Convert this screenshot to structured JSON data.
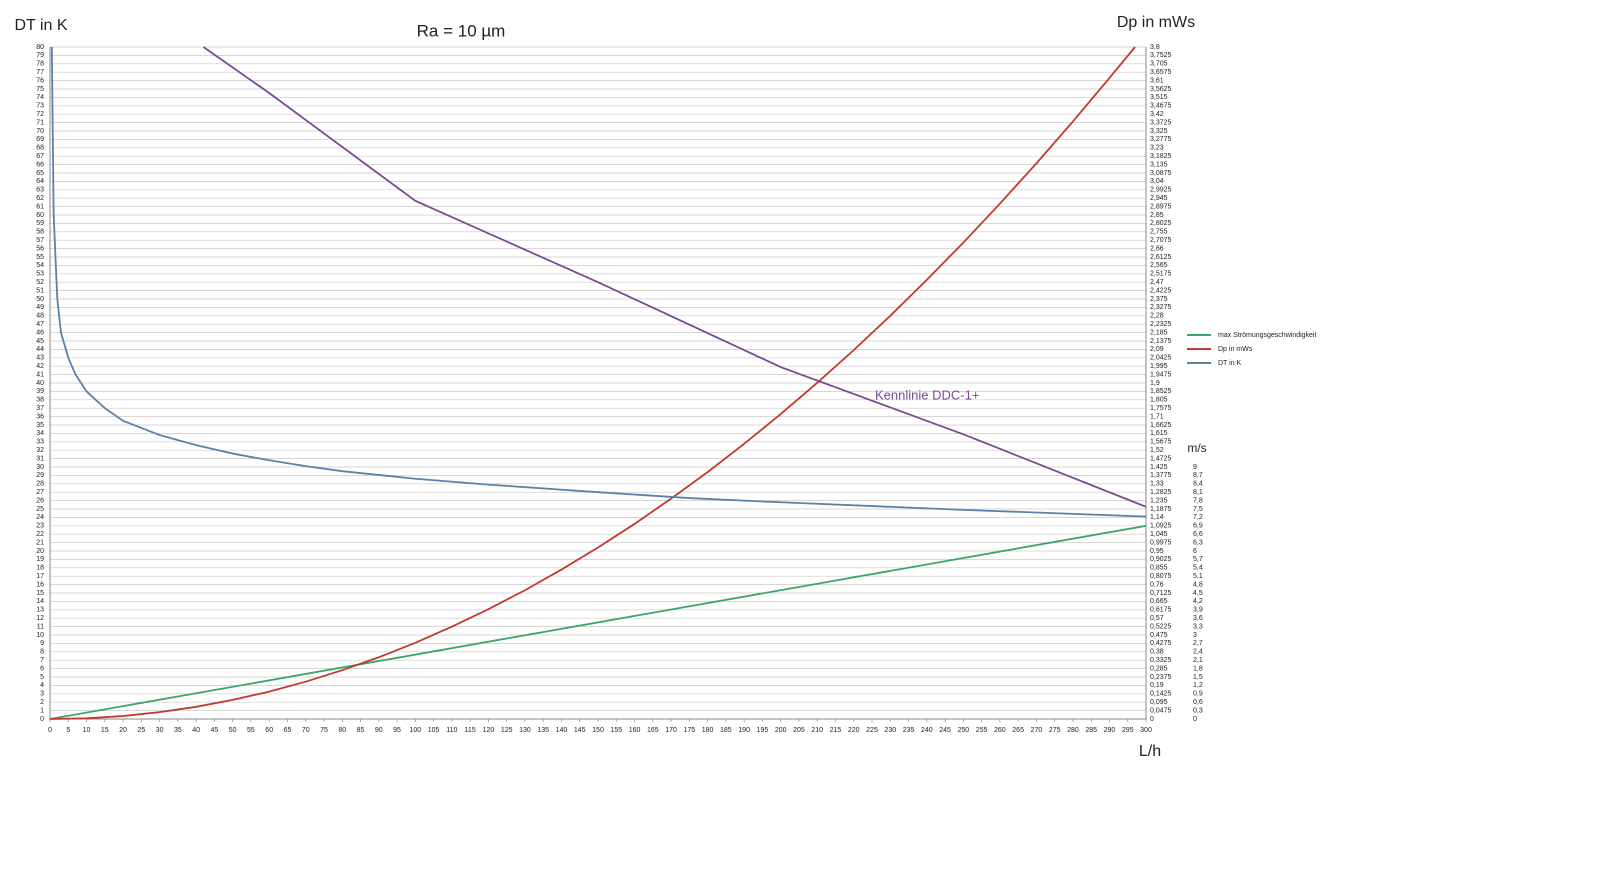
{
  "chart_data": {
    "type": "line",
    "title": "Ra = 10 µm",
    "y_label": "DT in K",
    "y2_label": "Dp in mWs",
    "y3_label": "m/s",
    "x_label": "L/h",
    "xlim": [
      0,
      300
    ],
    "ylim": [
      0,
      80
    ],
    "y2lim": [
      0,
      3.8
    ],
    "y3lim": [
      0,
      24
    ],
    "grid": true,
    "legend": "right",
    "xticks": [
      0,
      5,
      10,
      15,
      20,
      25,
      30,
      35,
      40,
      45,
      50,
      55,
      60,
      65,
      70,
      75,
      80,
      85,
      90,
      95,
      100,
      105,
      110,
      115,
      120,
      125,
      130,
      135,
      140,
      145,
      150,
      155,
      160,
      165,
      170,
      175,
      180,
      185,
      190,
      195,
      200,
      205,
      210,
      215,
      220,
      225,
      230,
      235,
      240,
      245,
      250,
      255,
      260,
      265,
      270,
      275,
      280,
      285,
      290,
      295,
      300
    ],
    "yticks": [
      0,
      1,
      2,
      3,
      4,
      5,
      6,
      7,
      8,
      9,
      10,
      11,
      12,
      13,
      14,
      15,
      16,
      17,
      18,
      19,
      20,
      21,
      22,
      23,
      24,
      25,
      26,
      27,
      28,
      29,
      30,
      31,
      32,
      33,
      34,
      35,
      36,
      37,
      38,
      39,
      40,
      41,
      42,
      43,
      44,
      45,
      46,
      47,
      48,
      49,
      50,
      51,
      52,
      53,
      54,
      55,
      56,
      57,
      58,
      59,
      60,
      61,
      62,
      63,
      64,
      65,
      66,
      67,
      68,
      69,
      70,
      71,
      72,
      73,
      74,
      75,
      76,
      77,
      78,
      79,
      80
    ],
    "y2ticks": [
      0,
      {
        "value": 0.0475,
        "label": "0,0475"
      },
      {
        "value": 0.095,
        "label": "0,095"
      },
      {
        "value": 0.1425,
        "label": "0,1425"
      },
      {
        "value": 0.19,
        "label": "0,19"
      },
      {
        "value": 0.2375,
        "label": "0,2375"
      },
      {
        "value": 0.285,
        "label": "0,285"
      },
      {
        "value": 0.3325,
        "label": "0,3325"
      },
      {
        "value": 0.38,
        "label": "0,38"
      },
      {
        "value": 0.4275,
        "label": "0,4275"
      },
      {
        "value": 0.475,
        "label": "0,475"
      },
      {
        "value": 0.5225,
        "label": "0,5225"
      },
      {
        "value": 0.57,
        "label": "0,57"
      },
      {
        "value": 0.6175,
        "label": "0,6175"
      },
      {
        "value": 0.665,
        "label": "0,665"
      },
      {
        "value": 0.7125,
        "label": "0,7125"
      },
      {
        "value": 0.76,
        "label": "0,76"
      },
      {
        "value": 0.8075,
        "label": "0,8075"
      },
      {
        "value": 0.855,
        "label": "0,855"
      },
      {
        "value": 0.9025,
        "label": "0,9025"
      },
      {
        "value": 0.95,
        "label": "0,95"
      },
      {
        "value": 0.9975,
        "label": "0,9975"
      },
      {
        "value": 1.045,
        "label": "1,045"
      },
      {
        "value": 1.0925,
        "label": "1,0925"
      },
      {
        "value": 1.14,
        "label": "1,14"
      },
      {
        "value": 1.1875,
        "label": "1,1875"
      },
      {
        "value": 1.235,
        "label": "1,235"
      },
      {
        "value": 1.2825,
        "label": "1,2825"
      },
      {
        "value": 1.33,
        "label": "1,33"
      },
      {
        "value": 1.3775,
        "label": "1,3775"
      },
      {
        "value": 1.425,
        "label": "1,425"
      },
      {
        "value": 1.4725,
        "label": "1,4725"
      },
      {
        "value": 1.52,
        "label": "1,52"
      },
      {
        "value": 1.5675,
        "label": "1,5675"
      },
      {
        "value": 1.615,
        "label": "1,615"
      },
      {
        "value": 1.6625,
        "label": "1,6625"
      },
      {
        "value": 1.71,
        "label": "1,71"
      },
      {
        "value": 1.7575,
        "label": "1,7575"
      },
      {
        "value": 1.805,
        "label": "1,805"
      },
      {
        "value": 1.8525,
        "label": "1,8525"
      },
      {
        "value": 1.9,
        "label": "1,9"
      },
      {
        "value": 1.9475,
        "label": "1,9475"
      },
      {
        "value": 1.995,
        "label": "1,995"
      },
      {
        "value": 2.0425,
        "label": "2,0425"
      },
      {
        "value": 2.09,
        "label": "2,09"
      },
      {
        "value": 2.1375,
        "label": "2,1375"
      },
      {
        "value": 2.185,
        "label": "2,185"
      },
      {
        "value": 2.2325,
        "label": "2,2325"
      },
      {
        "value": 2.28,
        "label": "2,28"
      },
      {
        "value": 2.3275,
        "label": "2,3275"
      },
      {
        "value": 2.375,
        "label": "2,375"
      },
      {
        "value": 2.4225,
        "label": "2,4225"
      },
      {
        "value": 2.47,
        "label": "2,47"
      },
      {
        "value": 2.5175,
        "label": "2,5175"
      },
      {
        "value": 2.565,
        "label": "2,565"
      },
      {
        "value": 2.6125,
        "label": "2,6125"
      },
      {
        "value": 2.66,
        "label": "2,66"
      },
      {
        "value": 2.7075,
        "label": "2,7075"
      },
      {
        "value": 2.755,
        "label": "2,755"
      },
      {
        "value": 2.8025,
        "label": "2,8025"
      },
      {
        "value": 2.85,
        "label": "2,85"
      },
      {
        "value": 2.8975,
        "label": "2,8975"
      },
      {
        "value": 2.945,
        "label": "2,945"
      },
      {
        "value": 2.9925,
        "label": "2,9925"
      },
      {
        "value": 3.04,
        "label": "3,04"
      },
      {
        "value": 3.0875,
        "label": "3,0875"
      },
      {
        "value": 3.135,
        "label": "3,135"
      },
      {
        "value": 3.1825,
        "label": "3,1825"
      },
      {
        "value": 3.23,
        "label": "3,23"
      },
      {
        "value": 3.2775,
        "label": "3,2775"
      },
      {
        "value": 3.325,
        "label": "3,325"
      },
      {
        "value": 3.3725,
        "label": "3,3725"
      },
      {
        "value": 3.42,
        "label": "3,42"
      },
      {
        "value": 3.4675,
        "label": "3,4675"
      },
      {
        "value": 3.515,
        "label": "3,515"
      },
      {
        "value": 3.5625,
        "label": "3,5625"
      },
      {
        "value": 3.61,
        "label": "3,61"
      },
      {
        "value": 3.6575,
        "label": "3,6575"
      },
      {
        "value": 3.705,
        "label": "3,705"
      },
      {
        "value": 3.7525,
        "label": "3,7525"
      },
      {
        "value": 3.8,
        "label": "3,8"
      }
    ],
    "y3ticks": [
      0,
      {
        "value": 0.3,
        "label": "0,3"
      },
      {
        "value": 0.6,
        "label": "0,6"
      },
      {
        "value": 0.9,
        "label": "0,9"
      },
      {
        "value": 1.2,
        "label": "1,2"
      },
      {
        "value": 1.5,
        "label": "1,5"
      },
      {
        "value": 1.8,
        "label": "1,8"
      },
      {
        "value": 2.1,
        "label": "2,1"
      },
      {
        "value": 2.4,
        "label": "2,4"
      },
      {
        "value": 2.7,
        "label": "2,7"
      },
      3,
      {
        "value": 3.3,
        "label": "3,3"
      },
      {
        "value": 3.6,
        "label": "3,6"
      },
      {
        "value": 3.9,
        "label": "3,9"
      },
      {
        "value": 4.2,
        "label": "4,2"
      },
      {
        "value": 4.5,
        "label": "4,5"
      },
      {
        "value": 4.8,
        "label": "4,8"
      },
      {
        "value": 5.1,
        "label": "5,1"
      },
      {
        "value": 5.4,
        "label": "5,4"
      },
      {
        "value": 5.7,
        "label": "5,7"
      },
      6,
      {
        "value": 6.3,
        "label": "6,3"
      },
      {
        "value": 6.6,
        "label": "6,6"
      },
      {
        "value": 6.9,
        "label": "6,9"
      },
      {
        "value": 7.2,
        "label": "7,2"
      },
      {
        "value": 7.5,
        "label": "7,5"
      },
      {
        "value": 7.8,
        "label": "7,8"
      },
      {
        "value": 8.1,
        "label": "8,1"
      },
      {
        "value": 8.4,
        "label": "8,4"
      },
      {
        "value": 8.7,
        "label": "8,7"
      },
      9
    ],
    "series": [
      {
        "name": "max Strömungsgeschwindigkeit",
        "color": "#3aa66a",
        "axis": "y3",
        "x": [
          0,
          300
        ],
        "values": [
          0,
          6.9
        ]
      },
      {
        "name": "Dp in mWs",
        "color": "#c23a2e",
        "axis": "y2",
        "x": [
          0,
          10,
          20,
          30,
          40,
          50,
          60,
          70,
          80,
          90,
          100,
          110,
          120,
          130,
          140,
          150,
          160,
          170,
          180,
          190,
          200,
          210,
          220,
          230,
          240,
          250,
          260,
          270,
          280,
          290,
          297
        ],
        "values": [
          0,
          0.004,
          0.017,
          0.039,
          0.069,
          0.108,
          0.155,
          0.211,
          0.276,
          0.349,
          0.431,
          0.522,
          0.621,
          0.728,
          0.845,
          0.97,
          1.103,
          1.246,
          1.396,
          1.556,
          1.724,
          1.901,
          2.086,
          2.28,
          2.483,
          2.694,
          2.914,
          3.142,
          3.379,
          3.625,
          3.8
        ]
      },
      {
        "name": "DT in K",
        "color": "#5a82a8",
        "x": [
          0.5,
          1,
          2,
          3,
          5,
          7,
          10,
          15,
          20,
          30,
          40,
          50,
          60,
          70,
          80,
          100,
          120,
          150,
          175,
          200,
          250,
          300
        ],
        "values": [
          80,
          60,
          50,
          46,
          43,
          41,
          39,
          37,
          35.5,
          33.8,
          32.6,
          31.6,
          30.8,
          30.1,
          29.5,
          28.6,
          27.9,
          27,
          26.3,
          25.8,
          24.9,
          24.1
        ]
      },
      {
        "name": "Kennlinie DDC-1+",
        "color": "#7a4b94",
        "axis": "y2",
        "legend": false,
        "x": [
          42,
          60,
          100,
          150,
          200,
          250,
          300
        ],
        "values": [
          3.8,
          3.54,
          2.93,
          2.47,
          1.99,
          1.61,
          1.2
        ]
      }
    ]
  }
}
